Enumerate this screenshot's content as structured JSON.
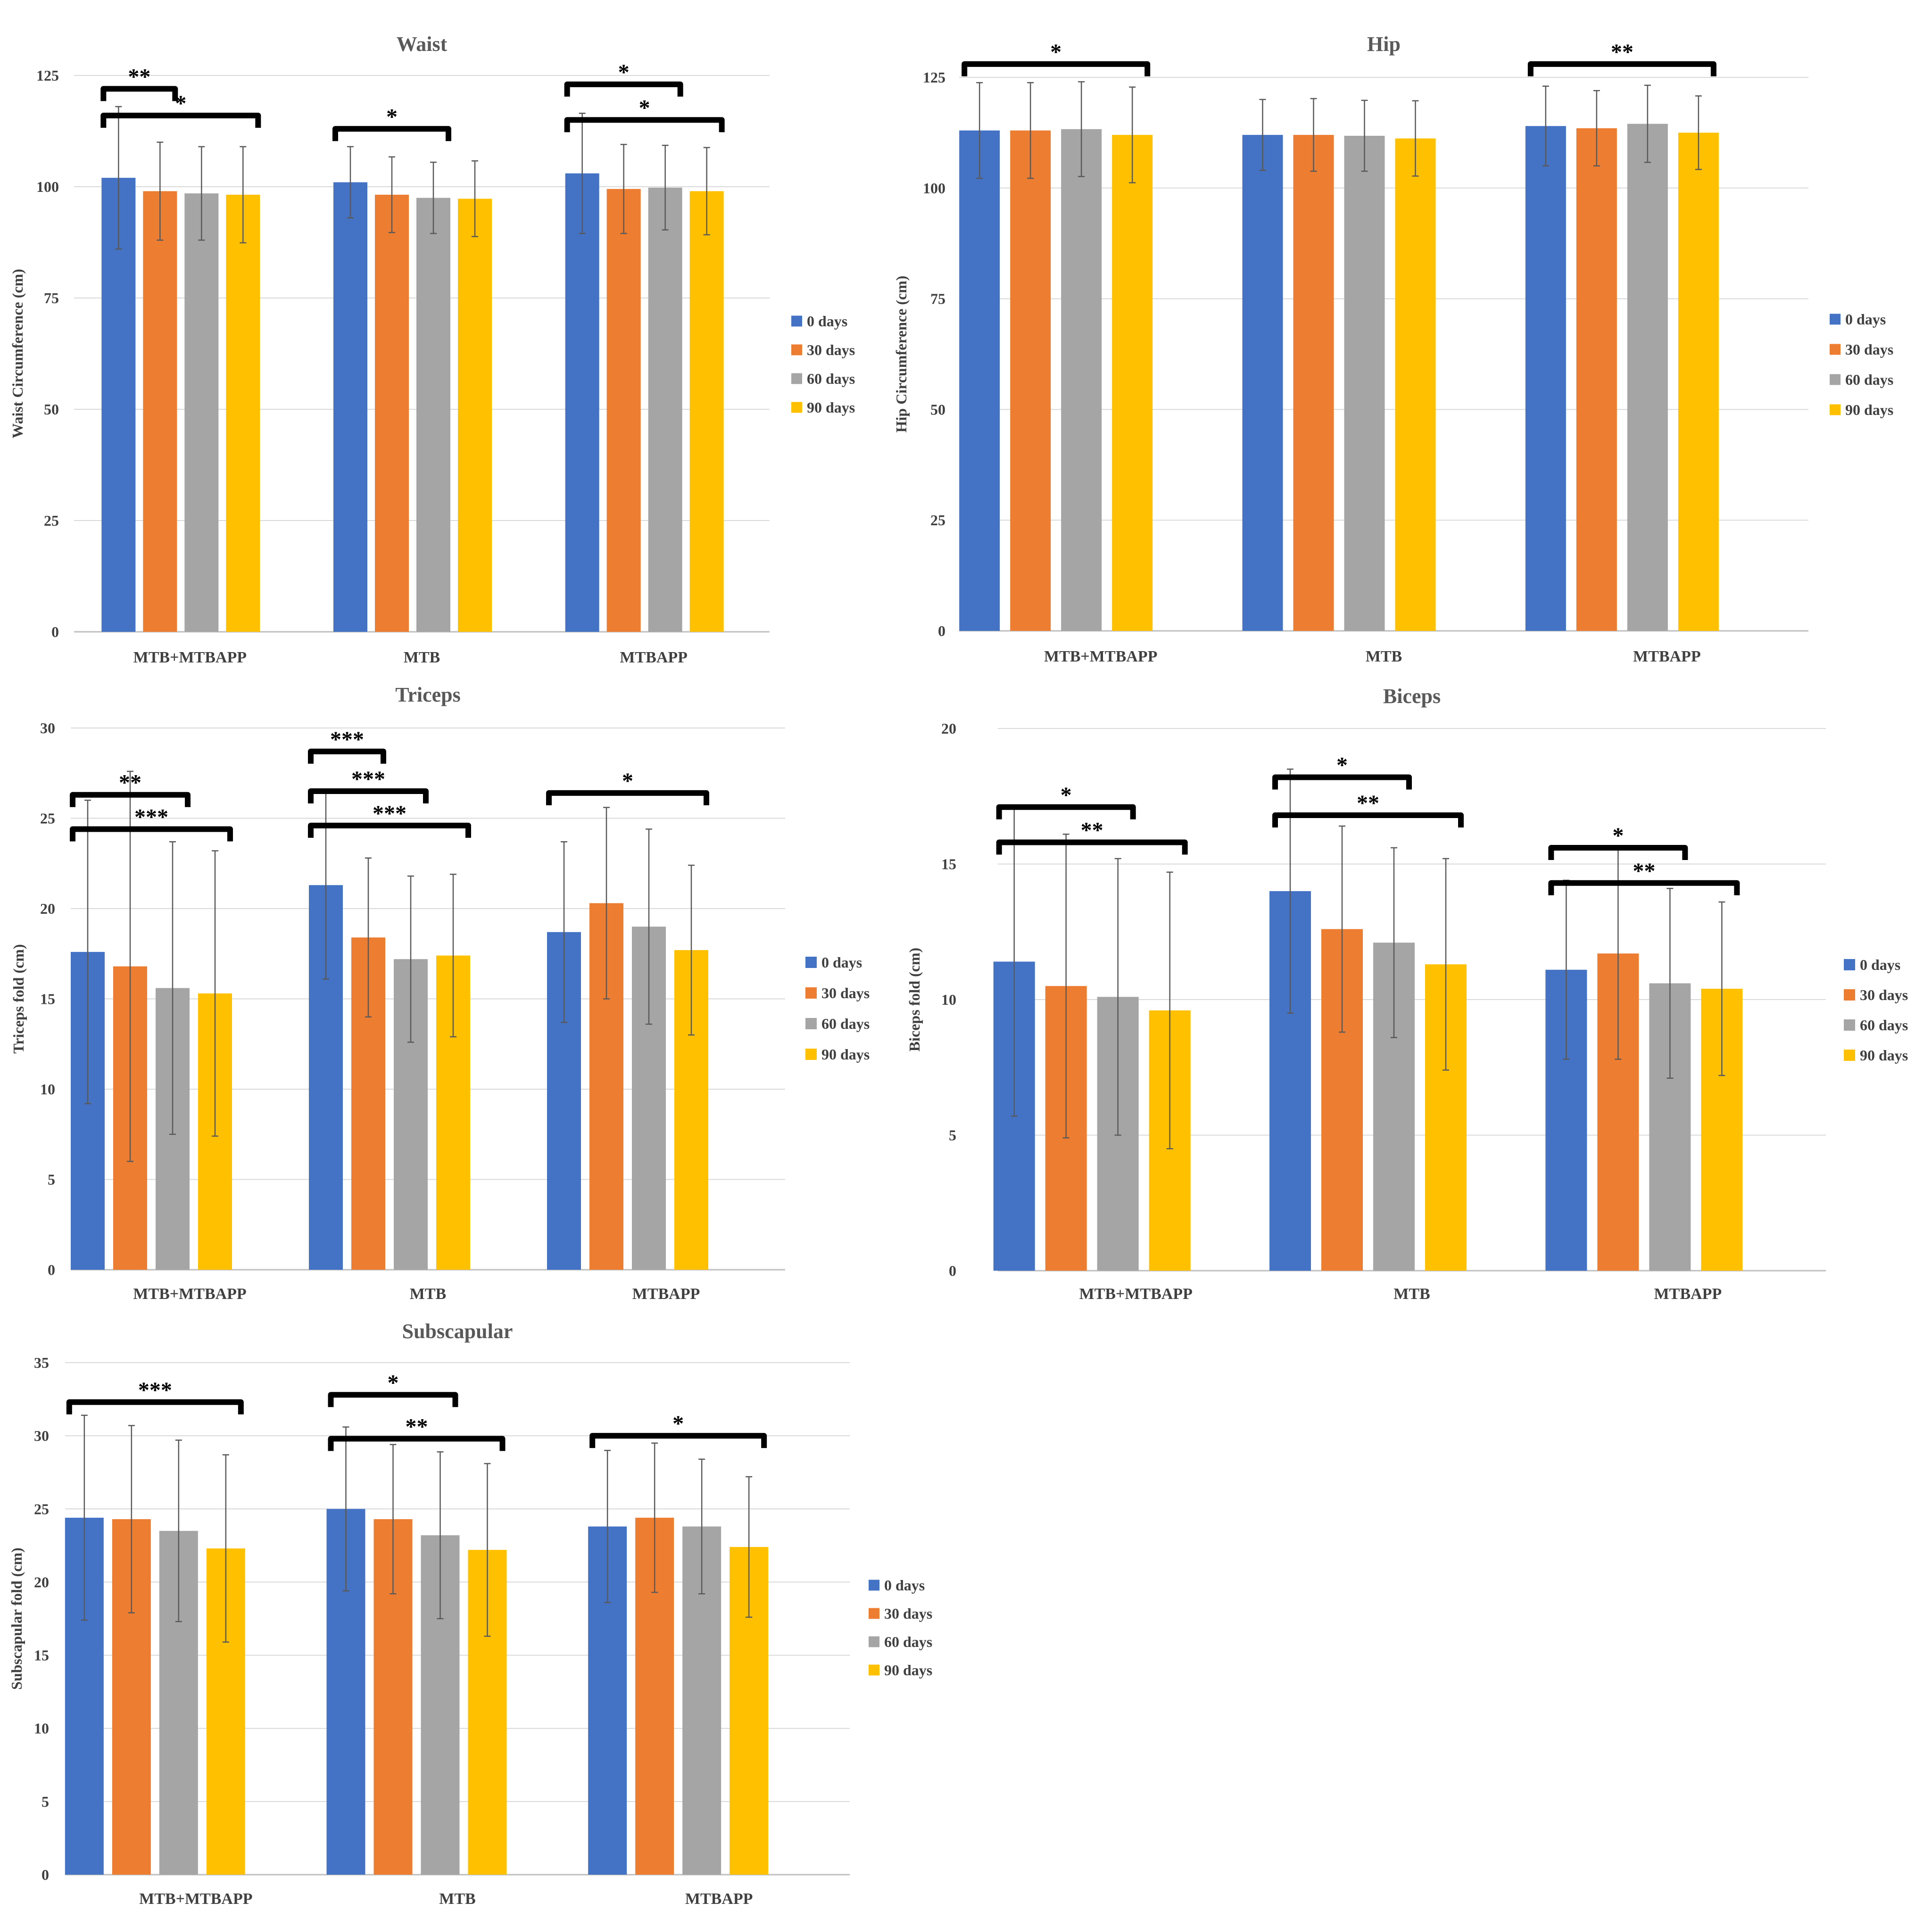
{
  "series_colors": [
    "#4472C4",
    "#ED7D31",
    "#A5A5A5",
    "#FFC000"
  ],
  "chart_data": [
    {
      "type": "bar",
      "title": "Waist",
      "ylabel": "Waist Circumference (cm)",
      "xlabel": "",
      "ylim": [
        0,
        125
      ],
      "yticks": [
        0,
        25,
        50,
        75,
        100,
        125
      ],
      "categories": [
        "MTB+MTBAPP",
        "MTB",
        "MTBAPP"
      ],
      "series": [
        {
          "name": "0 days",
          "values": [
            102.0,
            101.0,
            103.0
          ],
          "errors": [
            16.0,
            8.0,
            13.5
          ]
        },
        {
          "name": "30 days",
          "values": [
            99.0,
            98.2,
            99.5
          ],
          "errors": [
            11.0,
            8.5,
            10.0
          ]
        },
        {
          "name": "60 days",
          "values": [
            98.5,
            97.5,
            99.8
          ],
          "errors": [
            10.5,
            8.0,
            9.5
          ]
        },
        {
          "name": "90 days",
          "values": [
            98.2,
            97.3,
            99.0
          ],
          "errors": [
            10.8,
            8.5,
            9.8
          ]
        }
      ],
      "significance": [
        {
          "from": 0,
          "a": 0,
          "b": 1,
          "level": 122,
          "label": "**"
        },
        {
          "from": 0,
          "a": 0,
          "b": 3,
          "level": 116,
          "label": "*"
        },
        {
          "from": 1,
          "a": 0,
          "b": 2,
          "level": 113,
          "label": "*"
        },
        {
          "from": 2,
          "a": 0,
          "b": 2,
          "level": 123,
          "label": "*"
        },
        {
          "from": 2,
          "a": 0,
          "b": 3,
          "level": 115,
          "label": "*"
        }
      ],
      "legend_position": "right"
    },
    {
      "type": "bar",
      "title": "Hip",
      "ylabel": "Hip Circumference (cm)",
      "xlabel": "",
      "ylim": [
        0,
        125
      ],
      "yticks": [
        0,
        25,
        50,
        75,
        100,
        125
      ],
      "categories": [
        "MTB+MTBAPP",
        "MTB",
        "MTBAPP"
      ],
      "series": [
        {
          "name": "0 days",
          "values": [
            113.0,
            112.0,
            114.0
          ],
          "errors": [
            10.8,
            8.0,
            9.0
          ]
        },
        {
          "name": "30 days",
          "values": [
            113.0,
            112.0,
            113.5
          ],
          "errors": [
            10.8,
            8.2,
            8.5
          ]
        },
        {
          "name": "60 days",
          "values": [
            113.3,
            111.8,
            114.5
          ],
          "errors": [
            10.7,
            8.0,
            8.7
          ]
        },
        {
          "name": "90 days",
          "values": [
            112.0,
            111.2,
            112.5
          ],
          "errors": [
            10.8,
            8.5,
            8.3
          ]
        }
      ],
      "significance": [
        {
          "from": 0,
          "a": 0,
          "b": 3,
          "level": 128,
          "label": "*"
        },
        {
          "from": 2,
          "a": 0,
          "b": 3,
          "level": 128,
          "label": "**"
        }
      ],
      "legend_position": "right"
    },
    {
      "type": "bar",
      "title": "Triceps",
      "ylabel": "Triceps fold (cm)",
      "xlabel": "",
      "ylim": [
        0,
        30
      ],
      "yticks": [
        0,
        5,
        10,
        15,
        20,
        25,
        30
      ],
      "categories": [
        "MTB+MTBAPP",
        "MTB",
        "MTBAPP"
      ],
      "series": [
        {
          "name": "0 days",
          "values": [
            17.6,
            21.3,
            18.7
          ],
          "errors": [
            8.4,
            5.2,
            5.0
          ]
        },
        {
          "name": "30 days",
          "values": [
            16.8,
            18.4,
            20.3
          ],
          "errors": [
            10.8,
            4.4,
            5.3
          ]
        },
        {
          "name": "60 days",
          "values": [
            15.6,
            17.2,
            19.0
          ],
          "errors": [
            8.1,
            4.6,
            5.4
          ]
        },
        {
          "name": "90 days",
          "values": [
            15.3,
            17.4,
            17.7
          ],
          "errors": [
            7.9,
            4.5,
            4.7
          ]
        }
      ],
      "significance": [
        {
          "from": 0,
          "a": 0,
          "b": 2,
          "level": 26.3,
          "label": "**"
        },
        {
          "from": 0,
          "a": 0,
          "b": 3,
          "level": 24.4,
          "label": "***"
        },
        {
          "from": 1,
          "a": 0,
          "b": 1,
          "level": 28.7,
          "label": "***"
        },
        {
          "from": 1,
          "a": 0,
          "b": 2,
          "level": 26.5,
          "label": "***"
        },
        {
          "from": 1,
          "a": 0,
          "b": 3,
          "level": 24.6,
          "label": "***"
        },
        {
          "from": 2,
          "a": 0,
          "b": 3,
          "level": 26.4,
          "label": "*"
        }
      ],
      "legend_position": "right"
    },
    {
      "type": "bar",
      "title": "Biceps",
      "ylabel": "Biceps fold (cm)",
      "xlabel": "",
      "ylim": [
        0,
        20
      ],
      "yticks": [
        0,
        5,
        10,
        15,
        20
      ],
      "categories": [
        "MTB+MTBAPP",
        "MTB",
        "MTBAPP"
      ],
      "series": [
        {
          "name": "0 days",
          "values": [
            11.4,
            14.0,
            11.1
          ],
          "errors": [
            5.7,
            4.5,
            3.3
          ]
        },
        {
          "name": "30 days",
          "values": [
            10.5,
            12.6,
            11.7
          ],
          "errors": [
            5.6,
            3.8,
            3.9
          ]
        },
        {
          "name": "60 days",
          "values": [
            10.1,
            12.1,
            10.6
          ],
          "errors": [
            5.1,
            3.5,
            3.5
          ]
        },
        {
          "name": "90 days",
          "values": [
            9.6,
            11.3,
            10.4
          ],
          "errors": [
            5.1,
            3.9,
            3.2
          ]
        }
      ],
      "significance": [
        {
          "from": 0,
          "a": 0,
          "b": 2,
          "level": 17.1,
          "label": "*"
        },
        {
          "from": 0,
          "a": 0,
          "b": 3,
          "level": 15.8,
          "label": "**"
        },
        {
          "from": 1,
          "a": 0,
          "b": 2,
          "level": 18.2,
          "label": "*"
        },
        {
          "from": 1,
          "a": 0,
          "b": 3,
          "level": 16.8,
          "label": "**"
        },
        {
          "from": 2,
          "a": 0,
          "b": 2,
          "level": 15.6,
          "label": "*"
        },
        {
          "from": 2,
          "a": 0,
          "b": 3,
          "level": 14.3,
          "label": "**"
        }
      ],
      "legend_position": "right"
    },
    {
      "type": "bar",
      "title": "Subscapular",
      "ylabel": "Subscapular fold (cm)",
      "xlabel": "",
      "ylim": [
        0,
        35
      ],
      "yticks": [
        0,
        5,
        10,
        15,
        20,
        25,
        30,
        35
      ],
      "categories": [
        "MTB+MTBAPP",
        "MTB",
        "MTBAPP"
      ],
      "series": [
        {
          "name": "0 days",
          "values": [
            24.4,
            25.0,
            23.8
          ],
          "errors": [
            7.0,
            5.6,
            5.2
          ]
        },
        {
          "name": "30 days",
          "values": [
            24.3,
            24.3,
            24.4
          ],
          "errors": [
            6.4,
            5.1,
            5.1
          ]
        },
        {
          "name": "60 days",
          "values": [
            23.5,
            23.2,
            23.8
          ],
          "errors": [
            6.2,
            5.7,
            4.6
          ]
        },
        {
          "name": "90 days",
          "values": [
            22.3,
            22.2,
            22.4
          ],
          "errors": [
            6.4,
            5.9,
            4.8
          ]
        }
      ],
      "significance": [
        {
          "from": 0,
          "a": 0,
          "b": 3,
          "level": 32.3,
          "label": "***"
        },
        {
          "from": 1,
          "a": 0,
          "b": 2,
          "level": 32.8,
          "label": "*"
        },
        {
          "from": 1,
          "a": 0,
          "b": 3,
          "level": 29.8,
          "label": "**"
        },
        {
          "from": 2,
          "a": 0,
          "b": 3,
          "level": 30.0,
          "label": "*"
        }
      ],
      "legend_position": "right"
    }
  ]
}
